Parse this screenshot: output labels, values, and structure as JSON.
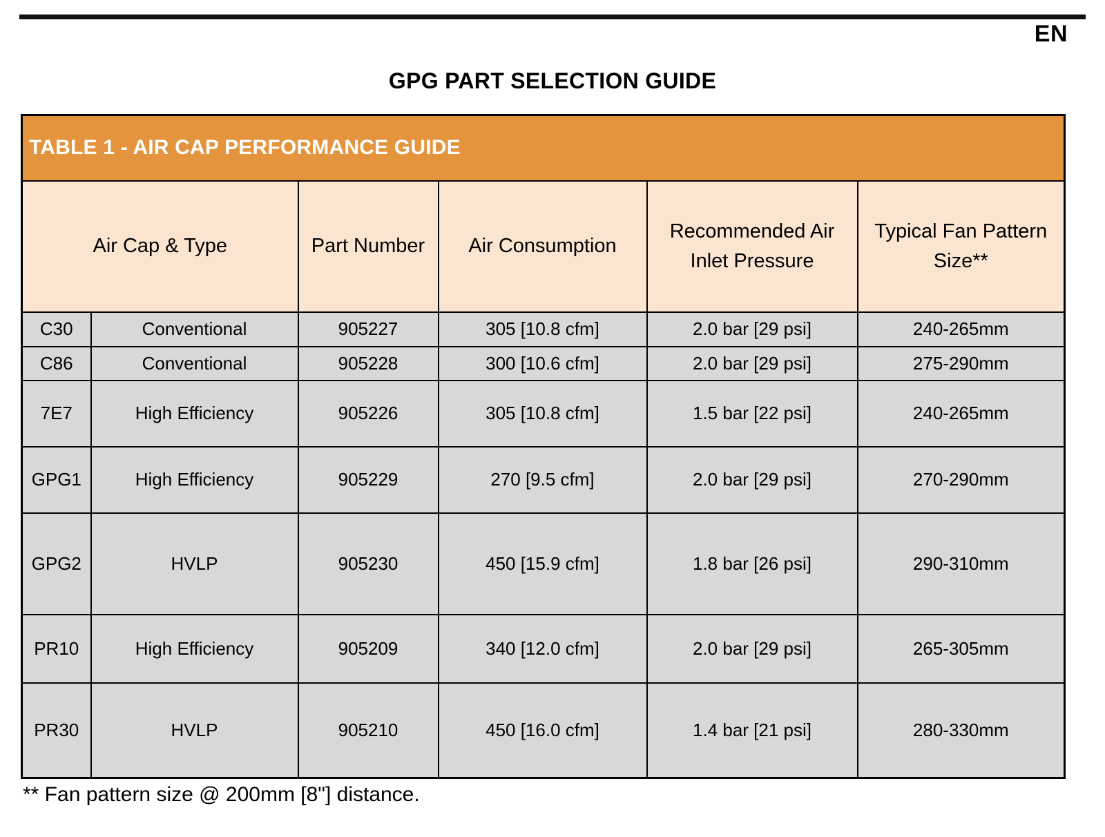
{
  "page": {
    "lang_label": "EN",
    "title": "GPG PART SELECTION GUIDE",
    "footnote": "** Fan pattern size @ 200mm [8\"] distance."
  },
  "table": {
    "title": "TABLE 1 - AIR CAP PERFORMANCE GUIDE",
    "columns": {
      "air_cap_type": "Air Cap & Type",
      "part_number": "Part Number",
      "air_consumption": "Air Consumption",
      "inlet_pressure": "Recommended Air Inlet Pressure",
      "fan_pattern": "Typical Fan Pattern Size**"
    },
    "rows": [
      {
        "air_cap": "C30",
        "type": "Conventional",
        "part_number": "905227",
        "air_consumption": "305 [10.8 cfm]",
        "pressure": "2.0 bar [29 psi]",
        "fan_pattern": "240-265mm"
      },
      {
        "air_cap": "C86",
        "type": "Conventional",
        "part_number": "905228",
        "air_consumption": "300 [10.6 cfm]",
        "pressure": "2.0 bar [29 psi]",
        "fan_pattern": "275-290mm"
      },
      {
        "air_cap": "7E7",
        "type": "High Efficiency",
        "part_number": "905226",
        "air_consumption": "305 [10.8 cfm]",
        "pressure": "1.5 bar [22 psi]",
        "fan_pattern": "240-265mm"
      },
      {
        "air_cap": "GPG1",
        "type": "High Efficiency",
        "part_number": "905229",
        "air_consumption": "270 [9.5 cfm]",
        "pressure": "2.0 bar [29 psi]",
        "fan_pattern": "270-290mm"
      },
      {
        "air_cap": "GPG2",
        "type": "HVLP",
        "part_number": "905230",
        "air_consumption": "450 [15.9 cfm]",
        "pressure": "1.8 bar [26 psi]",
        "fan_pattern": "290-310mm"
      },
      {
        "air_cap": "PR10",
        "type": "High Efficiency",
        "part_number": "905209",
        "air_consumption": "340 [12.0 cfm]",
        "pressure": "2.0 bar [29 psi]",
        "fan_pattern": "265-305mm"
      },
      {
        "air_cap": "PR30",
        "type": "HVLP",
        "part_number": "905210",
        "air_consumption": "450 [16.0 cfm]",
        "pressure": "1.4 bar [21 psi]",
        "fan_pattern": "280-330mm"
      }
    ]
  },
  "colors": {
    "band_orange": "#e5943e",
    "header_peach": "#fbe5d1",
    "row_gray": "#d8d8d8",
    "border_black": "#000000"
  }
}
